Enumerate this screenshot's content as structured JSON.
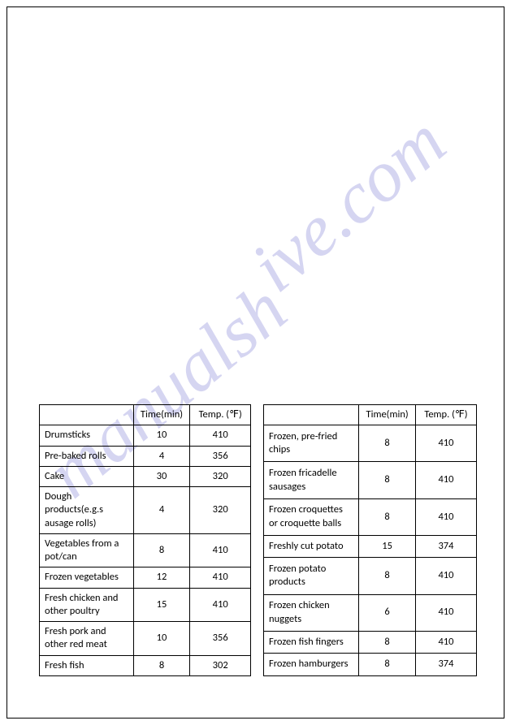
{
  "watermark": {
    "text1": "manualsh",
    "text2": "ive.com"
  },
  "tables": {
    "headers": {
      "name": "",
      "time": "Time(min)",
      "temp": "Temp. (℉)"
    },
    "left": [
      {
        "name": "Drumsticks",
        "time": "10",
        "temp": "410"
      },
      {
        "name": "Pre-baked rolls",
        "time": "4",
        "temp": "356"
      },
      {
        "name": "Cake",
        "time": "30",
        "temp": "320"
      },
      {
        "name": "Dough products(e.g.s ausage rolls)",
        "time": "4",
        "temp": "320"
      },
      {
        "name": "Vegetables from a pot/can",
        "time": "8",
        "temp": "410"
      },
      {
        "name": "Frozen vegetables",
        "time": "12",
        "temp": "410"
      },
      {
        "name": "Fresh chicken and other poultry",
        "time": "15",
        "temp": "410"
      },
      {
        "name": "Fresh pork and other red meat",
        "time": "10",
        "temp": "356"
      },
      {
        "name": "Fresh fish",
        "time": "8",
        "temp": "302"
      }
    ],
    "right": [
      {
        "name": "Frozen, pre-fried chips",
        "time": "8",
        "temp": "410"
      },
      {
        "name": "Frozen fricadelle sausages",
        "time": "8",
        "temp": "410"
      },
      {
        "name": "Frozen croquettes or croquette balls",
        "time": "8",
        "temp": "410"
      },
      {
        "name": "Freshly cut potato",
        "time": "15",
        "temp": "374"
      },
      {
        "name": "Frozen potato products",
        "time": "8",
        "temp": "410"
      },
      {
        "name": "Frozen chicken nuggets",
        "time": "6",
        "temp": "410"
      },
      {
        "name": "Frozen fish fingers",
        "time": "8",
        "temp": "410"
      },
      {
        "name": "Frozen hamburgers",
        "time": "8",
        "temp": "374"
      }
    ]
  },
  "styling": {
    "watermark_color": "#b3b3e6",
    "border_color": "#000000",
    "text_color": "#000000",
    "font_size": 12.5
  }
}
